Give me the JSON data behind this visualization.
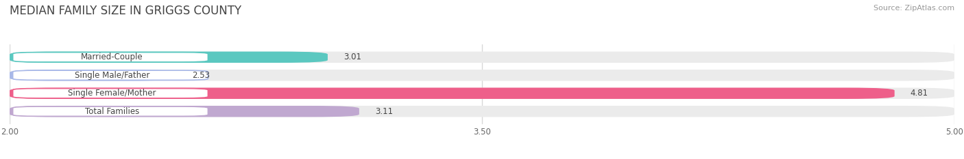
{
  "title": "MEDIAN FAMILY SIZE IN GRIGGS COUNTY",
  "source": "Source: ZipAtlas.com",
  "categories": [
    "Married-Couple",
    "Single Male/Father",
    "Single Female/Mother",
    "Total Families"
  ],
  "values": [
    3.01,
    2.53,
    4.81,
    3.11
  ],
  "bar_colors": [
    "#5bc8c0",
    "#a8b8e8",
    "#ee5f8a",
    "#c0a8d0"
  ],
  "xlim_left": 2.0,
  "xlim_right": 5.0,
  "xticks": [
    2.0,
    3.5,
    5.0
  ],
  "xtick_labels": [
    "2.00",
    "3.50",
    "5.00"
  ],
  "bar_height": 0.62,
  "label_fontsize": 8.5,
  "value_fontsize": 8.5,
  "title_fontsize": 12,
  "source_fontsize": 8,
  "background_color": "#ffffff",
  "bar_bg_color": "#ebebeb",
  "grid_color": "#d8d8d8",
  "label_text_color": "#444444",
  "value_text_color": "#444444",
  "title_color": "#444444",
  "source_color": "#999999"
}
